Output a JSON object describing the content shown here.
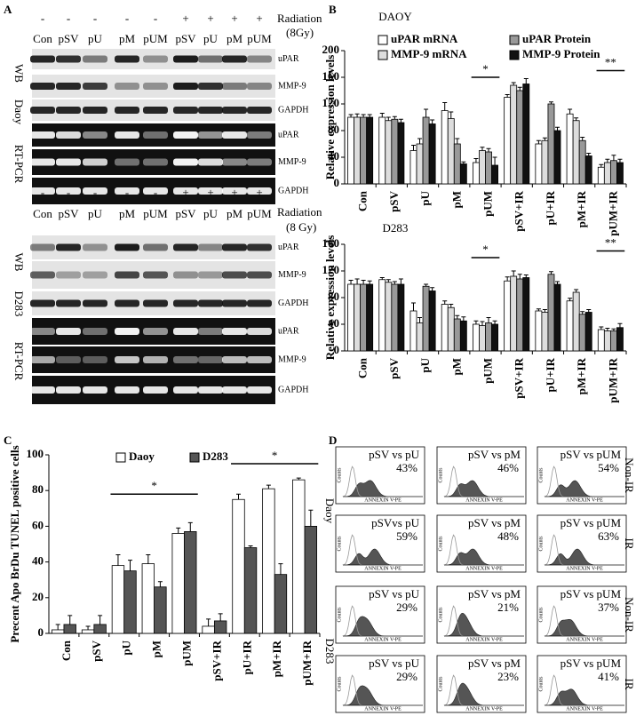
{
  "panel_a": {
    "label": "A",
    "radiation": "Radiation",
    "dose_top": "(8Gy)",
    "dose_bottom": "(8 Gy)",
    "signs": [
      "-",
      "-",
      "-",
      "-",
      "-",
      "+",
      "+",
      "+",
      "+"
    ],
    "lanes": [
      "Con",
      "pSV",
      "pU",
      "pM",
      "pUM",
      "pSV",
      "pU",
      "pM",
      "pUM"
    ],
    "methods": [
      "WB",
      "RT-PCR"
    ],
    "cells": [
      "Daoy",
      "D283"
    ],
    "bands": [
      "uPAR",
      "MMP-9",
      "GAPDH"
    ]
  },
  "panel_b": {
    "label": "B"
  },
  "panel_c": {
    "label": "C"
  },
  "chart_data": [
    {
      "type": "bar",
      "title": "DAOY",
      "ylabel": "Relative expression levels",
      "categories": [
        "Con",
        "pSV",
        "pU",
        "pM",
        "pUM",
        "pSV+IR",
        "pU+IR",
        "pM+IR",
        "pUM+IR"
      ],
      "series": [
        {
          "name": "uPAR mRNA",
          "color": "#ffffff",
          "values": [
            100,
            100,
            50,
            110,
            32,
            130,
            60,
            105,
            25
          ],
          "errors": [
            4,
            6,
            8,
            12,
            6,
            4,
            5,
            7,
            4
          ]
        },
        {
          "name": "MMP-9 mRNA",
          "color": "#dddddd",
          "values": [
            100,
            95,
            60,
            98,
            50,
            148,
            65,
            95,
            32
          ],
          "errors": [
            5,
            5,
            8,
            10,
            5,
            4,
            4,
            4,
            5
          ]
        },
        {
          "name": "uPAR Protein",
          "color": "#999999",
          "values": [
            100,
            97,
            100,
            60,
            48,
            140,
            120,
            65,
            35
          ],
          "errors": [
            4,
            4,
            12,
            8,
            5,
            5,
            3,
            5,
            8
          ]
        },
        {
          "name": "MMP-9 Protein",
          "color": "#111111",
          "values": [
            100,
            92,
            90,
            30,
            28,
            150,
            80,
            42,
            32
          ],
          "errors": [
            4,
            5,
            6,
            3,
            12,
            8,
            5,
            4,
            5
          ]
        }
      ],
      "ylim": [
        0,
        200
      ],
      "yticks": [
        0,
        40,
        80,
        120,
        160,
        200
      ],
      "annotations": [
        "*",
        "**"
      ]
    },
    {
      "type": "bar",
      "title": "D283",
      "ylabel": "Relative expression levels",
      "categories": [
        "Con",
        "pSV",
        "pU",
        "pM",
        "pUM",
        "pSV+IR",
        "pU+IR",
        "pM+IR",
        "pUM+IR"
      ],
      "series": [
        {
          "color": "#ffffff",
          "values": [
            100,
            107,
            60,
            70,
            40,
            105,
            60,
            75,
            32
          ],
          "errors": [
            6,
            3,
            12,
            5,
            5,
            6,
            3,
            4,
            4
          ]
        },
        {
          "color": "#dddddd",
          "values": [
            100,
            103,
            42,
            65,
            38,
            112,
            58,
            88,
            30
          ],
          "errors": [
            8,
            4,
            8,
            5,
            6,
            8,
            4,
            4,
            4
          ]
        },
        {
          "color": "#999999",
          "values": [
            100,
            100,
            97,
            48,
            42,
            108,
            115,
            55,
            30
          ],
          "errors": [
            6,
            4,
            3,
            5,
            8,
            7,
            4,
            4,
            3
          ]
        },
        {
          "color": "#111111",
          "values": [
            100,
            100,
            90,
            45,
            40,
            110,
            100,
            58,
            35
          ],
          "errors": [
            5,
            8,
            5,
            6,
            5,
            4,
            4,
            4,
            6
          ]
        }
      ],
      "ylim": [
        0,
        160
      ],
      "yticks": [
        0,
        40,
        80,
        120,
        160
      ],
      "annotations": [
        "*",
        "**"
      ]
    },
    {
      "type": "bar",
      "ylabel": "Precent Apo BrDu TUNEL positive cells",
      "categories": [
        "Con",
        "pSV",
        "pU",
        "pM",
        "pUM",
        "pSV+IR",
        "pU+IR",
        "pM+IR",
        "pUM+IR"
      ],
      "series": [
        {
          "name": "Daoy",
          "color": "#ffffff",
          "values": [
            2,
            2,
            38,
            39,
            56,
            4,
            75,
            81,
            86
          ],
          "errors": [
            3,
            2,
            6,
            5,
            3,
            4,
            3,
            2,
            1
          ]
        },
        {
          "name": "D283",
          "color": "#555555",
          "values": [
            5,
            5,
            35,
            26,
            57,
            7,
            48,
            33,
            60
          ],
          "errors": [
            5,
            5,
            6,
            3,
            5,
            4,
            1,
            6,
            9
          ]
        }
      ],
      "ylim": [
        0,
        100
      ],
      "yticks": [
        0,
        20,
        40,
        60,
        80,
        100
      ],
      "annotations": [
        "*",
        "*"
      ]
    }
  ],
  "panel_d": {
    "label": "D",
    "cells": [
      "Daoy",
      "D283"
    ],
    "conditions": [
      "Non-IR",
      "IR",
      "Non-IR",
      "IR"
    ],
    "x_label": "ANNEXIN V-PE",
    "y_label": "Counts",
    "rows": [
      {
        "titles": [
          "pSV vs pU",
          "pSV vs pM",
          "pSV vs pUM"
        ],
        "values": [
          43,
          46,
          54
        ],
        "value_labels": [
          "43%",
          "46%",
          "54%"
        ]
      },
      {
        "titles": [
          "pSVvs pU",
          "pSV vs pM",
          "pSV vs pUM"
        ],
        "values": [
          59,
          48,
          63
        ],
        "value_labels": [
          "59%",
          "48%",
          "63%"
        ]
      },
      {
        "titles": [
          "pSV vs pU",
          "pSV vs pM",
          "pSV vs pUM"
        ],
        "values": [
          29,
          21,
          37
        ],
        "value_labels": [
          "29%",
          "21%",
          "37%"
        ]
      },
      {
        "titles": [
          "pSV vs pU",
          "pSV vs pM",
          "pSV vs pUM"
        ],
        "values": [
          29,
          23,
          41
        ],
        "value_labels": [
          "29%",
          "23%",
          "41%"
        ]
      }
    ]
  }
}
